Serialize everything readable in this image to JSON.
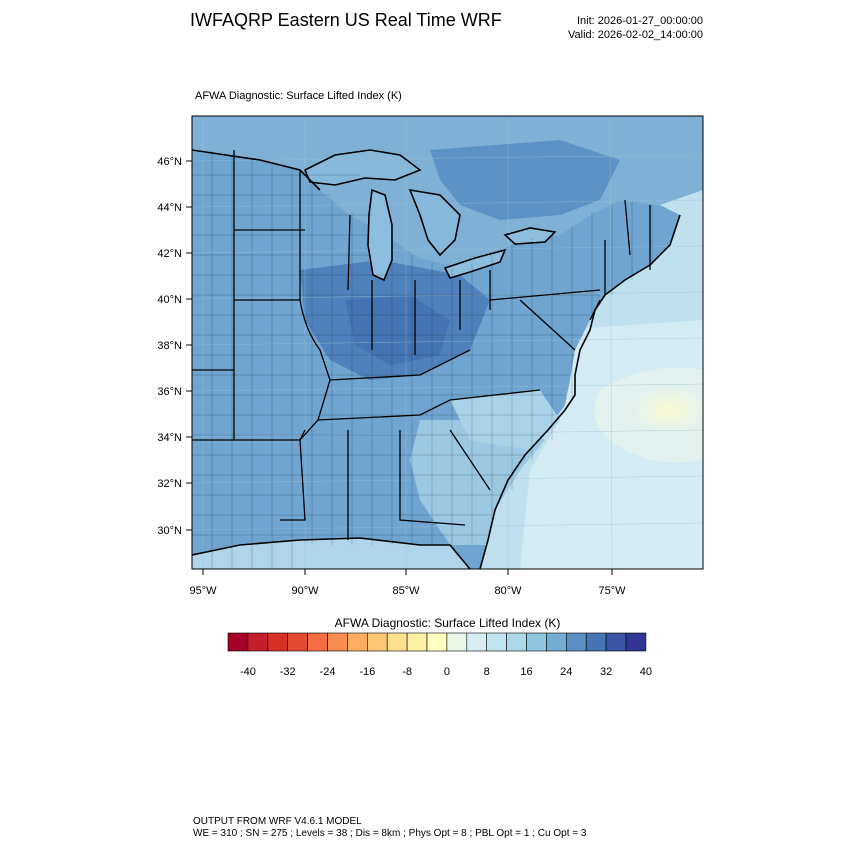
{
  "header": {
    "title": "IWFAQRP Eastern US Real Time WRF",
    "init": "Init: 2026-01-27_00:00:00",
    "valid": "Valid: 2026-02-02_14:00:00"
  },
  "field_title": "AFWA Diagnostic: Surface Lifted Index   (K)",
  "map": {
    "lat_labels": [
      "46°N",
      "44°N",
      "42°N",
      "40°N",
      "38°N",
      "36°N",
      "34°N",
      "32°N",
      "30°N"
    ],
    "lon_labels": [
      "95°W",
      "90°W",
      "85°W",
      "80°W",
      "75°W"
    ]
  },
  "colorbar": {
    "title": "AFWA Diagnostic: Surface Lifted Index  (K)",
    "labels": [
      "-40",
      "-32",
      "-24",
      "-16",
      "-8",
      "0",
      "8",
      "16",
      "24",
      "32",
      "40"
    ],
    "colors": [
      "#a50026",
      "#c41f2a",
      "#d73027",
      "#e34a33",
      "#f46d43",
      "#f88d52",
      "#fdae61",
      "#fdc676",
      "#fee090",
      "#fef0a7",
      "#ffffbf",
      "#e9f6e8",
      "#d8eef3",
      "#c2e4ef",
      "#abd9e9",
      "#92c5de",
      "#74add1",
      "#5a8fc2",
      "#4575b4",
      "#3a55a4",
      "#313695"
    ]
  },
  "footer": {
    "line1": "OUTPUT FROM WRF V4.6.1 MODEL",
    "line2": "WE = 310 ; SN = 275 ; Levels = 38 ; Dis = 8km ; Phys Opt = 8 ; PBL Opt = 1 ; Cu Opt = 3"
  }
}
